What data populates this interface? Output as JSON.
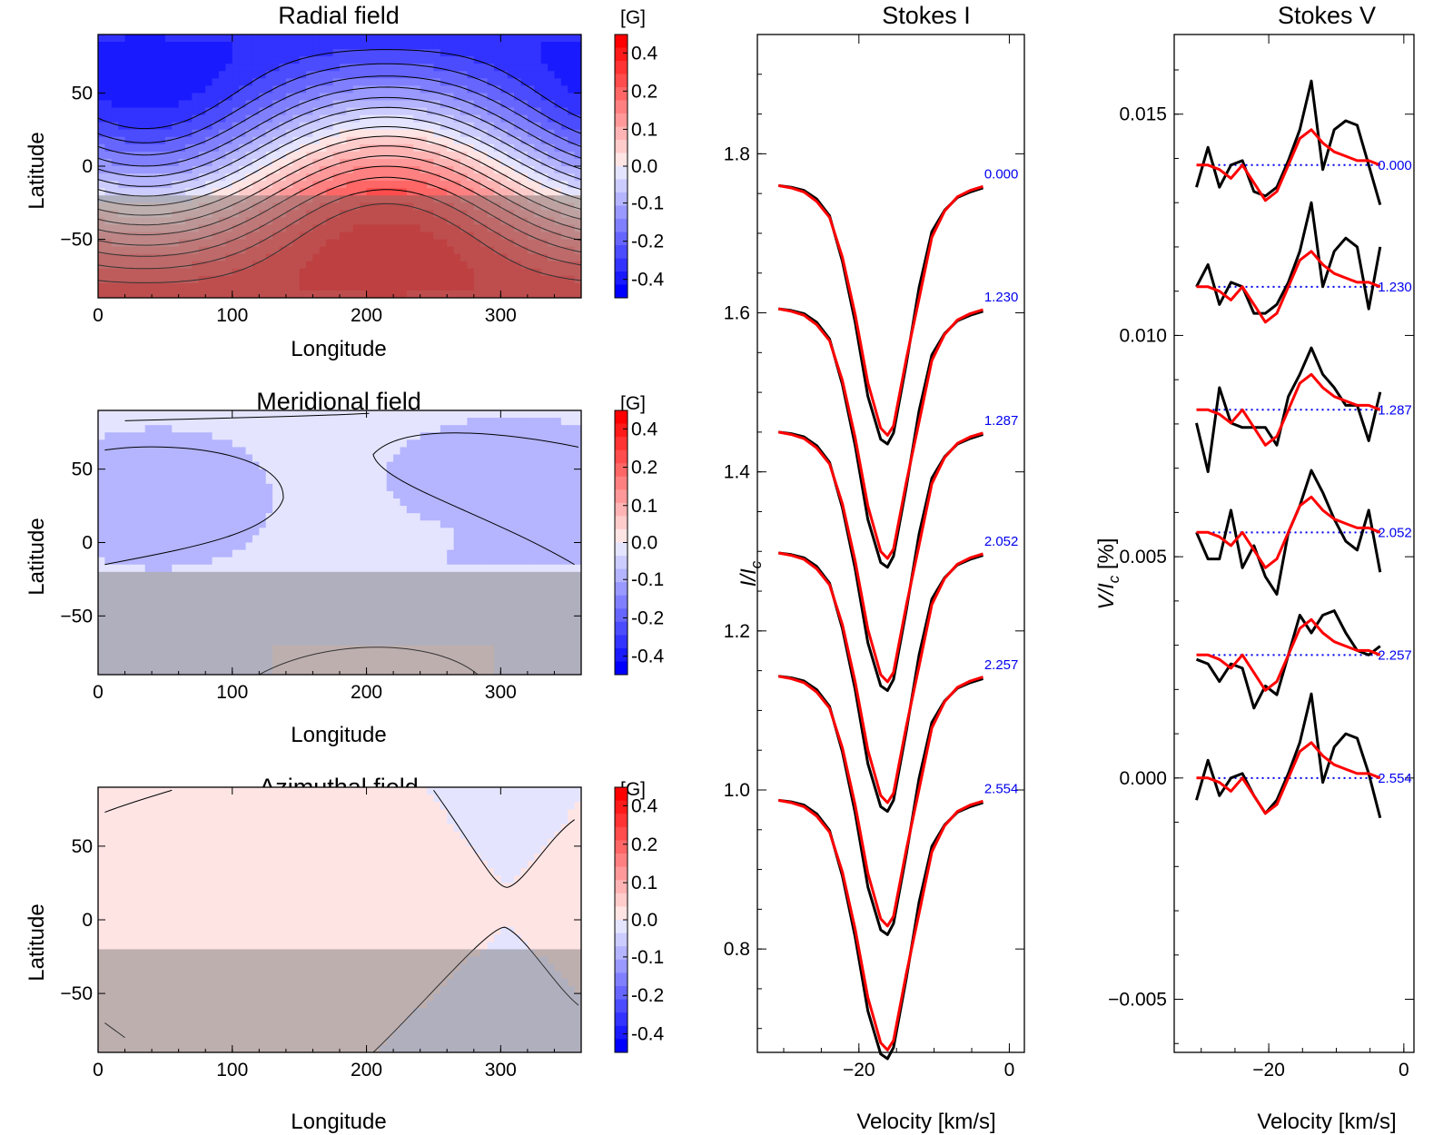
{
  "colors": {
    "pos_scale": [
      "#ffe4e4",
      "#ffcccc",
      "#ffb4b4",
      "#ff9999",
      "#ff8080",
      "#ff6666",
      "#ff4c4c",
      "#ff3333",
      "#ff1a1a",
      "#ff0000"
    ],
    "neg_scale": [
      "#e4e4ff",
      "#ccccff",
      "#b4b4ff",
      "#9999ff",
      "#8080ff",
      "#6666ff",
      "#4c4cff",
      "#3333ff",
      "#1a1aff",
      "#0000ff"
    ],
    "zero": "#ffffff",
    "observed": "#000000",
    "model": "#ff0000",
    "zero_line": "#0000ee",
    "hidden_shade": "rgba(110,110,110,0.45)"
  },
  "maps": [
    {
      "title": "Radial field",
      "xlabel": "Longitude",
      "ylabel": "Latitude",
      "cbar_unit": "[G]"
    },
    {
      "title": "Meridional field",
      "xlabel": "Longitude",
      "ylabel": "Latitude",
      "cbar_unit": "[G]"
    },
    {
      "title": "Azimuthal field",
      "xlabel": "Longitude",
      "ylabel": "Latitude",
      "cbar_unit": "[G]"
    }
  ],
  "stokes_i": {
    "title": "Stokes I",
    "xlabel": "Velocity [km/s]",
    "ylabel": "I/I"
  },
  "stokes_v": {
    "title": "Stokes V",
    "xlabel": "Velocity [km/s]",
    "ylabel": "V/I"
  },
  "chart_data": [
    {
      "type": "heatmap",
      "name": "radial",
      "title": "Radial field",
      "xlabel": "Longitude",
      "ylabel": "Latitude",
      "xlim": [
        0,
        360
      ],
      "ylim": [
        -90,
        90
      ],
      "xticks": [
        0,
        100,
        200,
        300
      ],
      "yticks": [
        -50,
        0,
        50
      ],
      "colorbar": {
        "unit": "[G]",
        "range": [
          -0.5,
          0.5
        ],
        "ticks": [
          0.4,
          0.2,
          0.1,
          0.0,
          -0.1,
          -0.2,
          -0.4
        ],
        "tick_labels": [
          "0.4",
          "0.2",
          "0.1",
          "0.0",
          "-0.1",
          "-0.2",
          "-0.4"
        ]
      },
      "hidden_below_latitude": -20,
      "field": {
        "dipole_strength": 0.44,
        "tilt_deg": 27,
        "peak_longitude": 215
      },
      "contour_levels": [
        -0.4,
        -0.35,
        -0.3,
        -0.25,
        -0.2,
        -0.15,
        -0.1,
        -0.05,
        0,
        0.05,
        0.1,
        0.15,
        0.2,
        0.25,
        0.3,
        0.35
      ]
    },
    {
      "type": "heatmap",
      "name": "meridional",
      "title": "Meridional field",
      "xlabel": "Longitude",
      "ylabel": "Latitude",
      "xlim": [
        0,
        360
      ],
      "ylim": [
        -90,
        90
      ],
      "xticks": [
        0,
        100,
        200,
        300
      ],
      "yticks": [
        -50,
        0,
        50
      ],
      "colorbar": {
        "unit": "[G]",
        "range": [
          -0.5,
          0.5
        ],
        "ticks": [
          0.4,
          0.2,
          0.1,
          0.0,
          -0.1,
          -0.2,
          -0.4
        ],
        "tick_labels": [
          "0.4",
          "0.2",
          "0.1",
          "0.0",
          "-0.1",
          "-0.2",
          "-0.4"
        ]
      },
      "hidden_below_latitude": -20,
      "region_values": {
        "background": -0.03,
        "lobes": -0.1,
        "bottom_cap": 0.03
      }
    },
    {
      "type": "heatmap",
      "name": "azimuthal",
      "title": "Azimuthal field",
      "xlabel": "Longitude",
      "ylabel": "Latitude",
      "xlim": [
        0,
        360
      ],
      "ylim": [
        -90,
        90
      ],
      "xticks": [
        0,
        100,
        200,
        300
      ],
      "yticks": [
        -50,
        0,
        50
      ],
      "colorbar": {
        "unit": "[G]",
        "range": [
          -0.5,
          0.5
        ],
        "ticks": [
          0.4,
          0.2,
          0.1,
          0.0,
          -0.1,
          -0.2,
          -0.4
        ],
        "tick_labels": [
          "0.4",
          "0.2",
          "0.1",
          "0.0",
          "-0.1",
          "-0.2",
          "-0.4"
        ]
      },
      "hidden_below_latitude": -20,
      "region_values": {
        "background": 0.03,
        "wedges": -0.03
      }
    },
    {
      "type": "line",
      "name": "stokes_i",
      "title": "Stokes I",
      "xlabel": "Velocity [km/s]",
      "ylabel": "I/I",
      "xlim": [
        -33.5,
        2
      ],
      "ylim": [
        0.67,
        1.95
      ],
      "xticks": [
        -20,
        0
      ],
      "yticks": [
        0.8,
        1.0,
        1.2,
        1.4,
        1.6,
        1.8
      ],
      "velocity": [
        -30.7,
        -29.0,
        -27.3,
        -25.6,
        -23.9,
        -22.2,
        -20.5,
        -18.8,
        -17.1,
        -16.2,
        -15.4,
        -13.7,
        -12.0,
        -10.3,
        -8.6,
        -6.9,
        -5.2,
        -3.5
      ],
      "phases": [
        "0.000",
        "1.230",
        "1.287",
        "2.052",
        "2.257",
        "2.554"
      ],
      "offsets": [
        0.76,
        0.605,
        0.45,
        0.298,
        0.143,
        -0.013
      ],
      "observed_profile": [
        1.0,
        0.998,
        0.994,
        0.983,
        0.962,
        0.905,
        0.828,
        0.735,
        0.681,
        0.675,
        0.689,
        0.776,
        0.872,
        0.942,
        0.969,
        0.985,
        0.992,
        0.997
      ],
      "model_profile": [
        1.0,
        0.997,
        0.992,
        0.98,
        0.96,
        0.91,
        0.838,
        0.752,
        0.695,
        0.686,
        0.698,
        0.782,
        0.858,
        0.935,
        0.968,
        0.986,
        0.994,
        0.999
      ]
    },
    {
      "type": "line",
      "name": "stokes_v",
      "title": "Stokes V",
      "xlabel": "Velocity [km/s]",
      "ylabel": "V/I",
      "xlim": [
        -34,
        1.5
      ],
      "ylim": [
        -0.0062,
        0.0168
      ],
      "xticks": [
        -20,
        0
      ],
      "yticks": [
        0.015,
        0.01,
        0.005,
        0.0,
        -0.005
      ],
      "velocity": [
        -30.7,
        -29.0,
        -27.3,
        -25.6,
        -23.9,
        -22.2,
        -20.5,
        -18.8,
        -17.1,
        -15.4,
        -13.7,
        -12.0,
        -10.3,
        -8.6,
        -6.9,
        -5.2,
        -3.5
      ],
      "phases": [
        "0.000",
        "1.230",
        "1.287",
        "2.052",
        "2.257",
        "2.554"
      ],
      "offsets": [
        0.01385,
        0.0111,
        0.00832,
        0.00555,
        0.00278,
        0.0
      ],
      "observed": [
        [
          -0.0005,
          0.0004,
          -0.0005,
          0.0,
          0.0001,
          -0.0006,
          -0.0007,
          -0.0005,
          0.0001,
          0.0008,
          0.0019,
          -0.0001,
          0.0008,
          0.001,
          0.0009,
          0.0,
          -0.0009
        ],
        [
          0.0,
          0.0005,
          -0.0004,
          0.0001,
          0.0,
          -0.0006,
          -0.0006,
          -0.0004,
          0.0001,
          0.0008,
          0.0019,
          0.0,
          0.0008,
          0.0011,
          0.0009,
          -0.0005,
          0.0009
        ],
        [
          -0.0003,
          -0.0014,
          0.0005,
          -0.0003,
          -0.0004,
          -0.0004,
          -0.0004,
          -0.0008,
          0.0003,
          0.0008,
          0.0014,
          0.0008,
          0.0005,
          0.0001,
          0.0001,
          -0.0007,
          0.0004
        ],
        [
          0.0,
          -0.0006,
          -0.0006,
          0.0005,
          -0.0008,
          -0.0003,
          -0.001,
          -0.0014,
          0.0,
          0.0006,
          0.0014,
          0.0009,
          0.0003,
          -0.0002,
          -0.0004,
          0.0005,
          -0.0009
        ],
        [
          -0.0001,
          -0.0002,
          -0.0006,
          -0.0002,
          -0.0003,
          -0.0012,
          -0.0007,
          -0.0009,
          0.0,
          0.0009,
          0.0005,
          0.0009,
          0.001,
          0.0005,
          0.0001,
          0.0,
          0.0002
        ],
        [
          -0.0005,
          0.0004,
          -0.0004,
          0.0,
          0.0001,
          -0.0004,
          -0.0008,
          -0.0005,
          0.0001,
          0.0008,
          0.0019,
          -0.0001,
          0.0007,
          0.001,
          0.0009,
          0.0001,
          -0.0009
        ]
      ],
      "model": [
        [
          0.0,
          0.0,
          -0.0001,
          -0.0003,
          0.0,
          -0.0004,
          -0.0008,
          -0.0006,
          0.0,
          0.0006,
          0.0008,
          0.0005,
          0.0003,
          0.0002,
          0.0001,
          0.0001,
          0.0
        ],
        [
          0.0,
          0.0,
          -0.0001,
          -0.0003,
          0.0,
          -0.0004,
          -0.0008,
          -0.0006,
          0.0,
          0.0006,
          0.0008,
          0.0005,
          0.0003,
          0.0002,
          0.0001,
          0.0001,
          0.0
        ],
        [
          0.0,
          0.0,
          -0.0001,
          -0.0003,
          0.0,
          -0.0004,
          -0.0008,
          -0.0006,
          0.0,
          0.0006,
          0.0008,
          0.0005,
          0.0003,
          0.0002,
          0.0001,
          0.0001,
          0.0
        ],
        [
          0.0,
          0.0,
          -0.0001,
          -0.0003,
          0.0,
          -0.0004,
          -0.0008,
          -0.0006,
          0.0,
          0.0006,
          0.0008,
          0.0005,
          0.0003,
          0.0002,
          0.0001,
          0.0001,
          0.0
        ],
        [
          0.0,
          0.0,
          -0.0001,
          -0.0003,
          0.0,
          -0.0004,
          -0.0008,
          -0.0006,
          0.0,
          0.0006,
          0.0008,
          0.0005,
          0.0003,
          0.0002,
          0.0001,
          0.0001,
          0.0
        ],
        [
          0.0,
          0.0,
          -0.0001,
          -0.0003,
          0.0,
          -0.0004,
          -0.0008,
          -0.0006,
          0.0,
          0.0006,
          0.0008,
          0.0005,
          0.0003,
          0.0002,
          0.0001,
          0.0001,
          0.0
        ]
      ]
    }
  ]
}
